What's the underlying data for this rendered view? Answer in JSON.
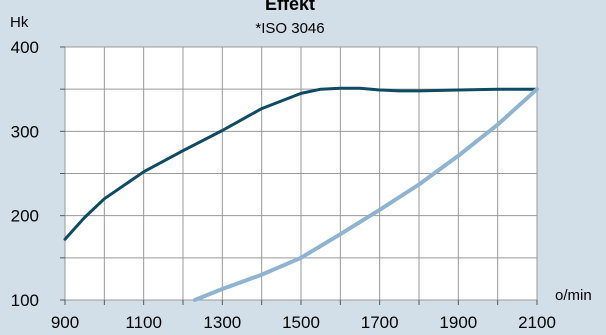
{
  "chart_data": {
    "type": "line",
    "title": "Effekt",
    "subtitle": "*ISO 3046",
    "ylabel": "Hk",
    "xlabel": "o/min",
    "xlim": [
      900,
      2100
    ],
    "ylim": [
      100,
      400
    ],
    "x_ticks": [
      "900",
      "1100",
      "1300",
      "1500",
      "1700",
      "1900",
      "2100"
    ],
    "y_ticks": [
      "100",
      "200",
      "300",
      "400"
    ],
    "x_gridlines": [
      900,
      1000,
      1100,
      1200,
      1300,
      1400,
      1500,
      1600,
      1700,
      1800,
      1900,
      2000,
      2100
    ],
    "y_gridlines": [
      100,
      150,
      200,
      250,
      300,
      350,
      400
    ],
    "grid": true,
    "colors": {
      "background": "#d2dfe9",
      "plot_background": "#ffffff",
      "grid": "#9a9a9a"
    },
    "series": [
      {
        "color": "#0e4b63",
        "x": [
          900,
          950,
          1000,
          1100,
          1200,
          1300,
          1400,
          1500,
          1550,
          1600,
          1650,
          1700,
          1750,
          1800,
          1900,
          2000,
          2100
        ],
        "y": [
          172,
          198,
          220,
          252,
          277,
          301,
          327,
          345,
          350,
          351,
          351,
          349,
          348,
          348,
          349,
          350,
          350
        ]
      },
      {
        "color": "#8fb4d2",
        "x": [
          1230,
          1300,
          1400,
          1500,
          1600,
          1700,
          1800,
          1900,
          2000,
          2100
        ],
        "y": [
          100,
          113,
          130,
          150,
          178,
          207,
          237,
          271,
          308,
          350
        ]
      }
    ]
  }
}
